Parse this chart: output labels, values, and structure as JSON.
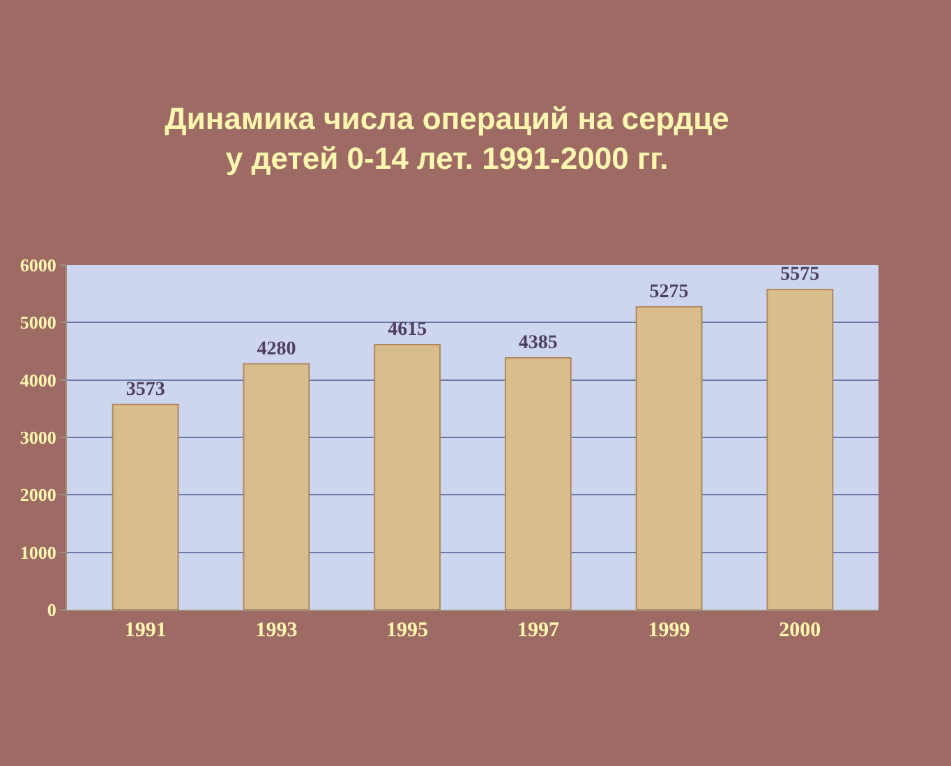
{
  "chart_data": {
    "type": "bar",
    "title": "Динамика числа операций на сердце\nу детей 0-14 лет. 1991-2000 гг.",
    "categories": [
      "1991",
      "1993",
      "1995",
      "1997",
      "1999",
      "2000"
    ],
    "values": [
      3573,
      4280,
      4615,
      4385,
      5275,
      5575
    ],
    "color": "#d9bd8c",
    "data_labels": true,
    "ylim": [
      0,
      6000
    ],
    "yticks": [
      0,
      1000,
      2000,
      3000,
      4000,
      5000,
      6000
    ],
    "grid": "y",
    "legend": false
  }
}
